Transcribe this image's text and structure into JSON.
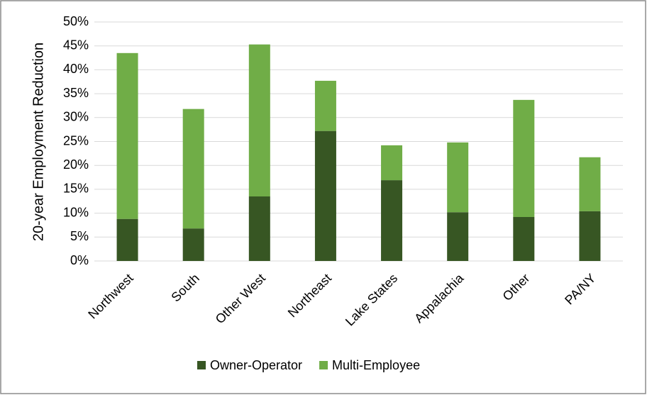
{
  "chart_data": {
    "type": "stacked_bar",
    "y_label": "20-year Employment Reduction",
    "categories": [
      "Northwest",
      "South",
      "Other West",
      "Northeast",
      "Lake States",
      "Appalachia",
      "Other",
      "PA/NY"
    ],
    "series": [
      {
        "name": "Owner-Operator",
        "color": "#375623",
        "values": [
          8.8,
          6.8,
          13.5,
          27.2,
          16.9,
          10.2,
          9.2,
          10.4
        ]
      },
      {
        "name": "Multi-Employee",
        "color": "#70ad47",
        "values": [
          34.7,
          25.0,
          31.8,
          10.5,
          7.3,
          14.6,
          24.5,
          11.3
        ]
      }
    ],
    "ylim": [
      0,
      50
    ],
    "yticks": [
      {
        "value": 0,
        "label": "0%"
      },
      {
        "value": 5,
        "label": "5%"
      },
      {
        "value": 10,
        "label": "10%"
      },
      {
        "value": 15,
        "label": "15%"
      },
      {
        "value": 20,
        "label": "20%"
      },
      {
        "value": 25,
        "label": "25%"
      },
      {
        "value": 30,
        "label": "30%"
      },
      {
        "value": 35,
        "label": "35%"
      },
      {
        "value": 40,
        "label": "40%"
      },
      {
        "value": 45,
        "label": "45%"
      },
      {
        "value": 50,
        "label": "50%"
      }
    ],
    "grid": true,
    "legend": "bottom"
  }
}
